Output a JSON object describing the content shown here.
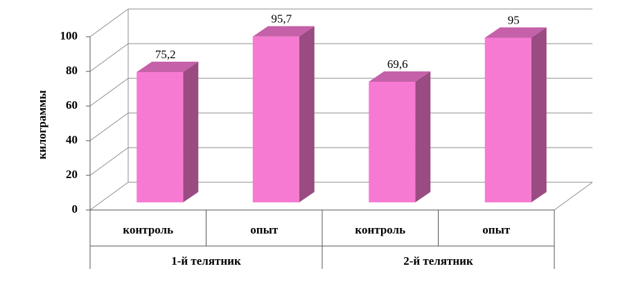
{
  "chart_data": {
    "type": "bar3d",
    "y_label": "килограммы",
    "categories": [
      "контроль",
      "опыт",
      "контроль",
      "опыт"
    ],
    "groups": [
      "1-й телятник",
      "2-й телятник"
    ],
    "values": [
      75.2,
      95.7,
      69.6,
      95
    ],
    "value_labels": [
      "75,2",
      "95,7",
      "69,6",
      "95"
    ],
    "color": "#f77ad2",
    "ylim": [
      0,
      100
    ],
    "yticks": [
      0,
      20,
      40,
      60,
      80,
      100
    ],
    "grid": true
  }
}
